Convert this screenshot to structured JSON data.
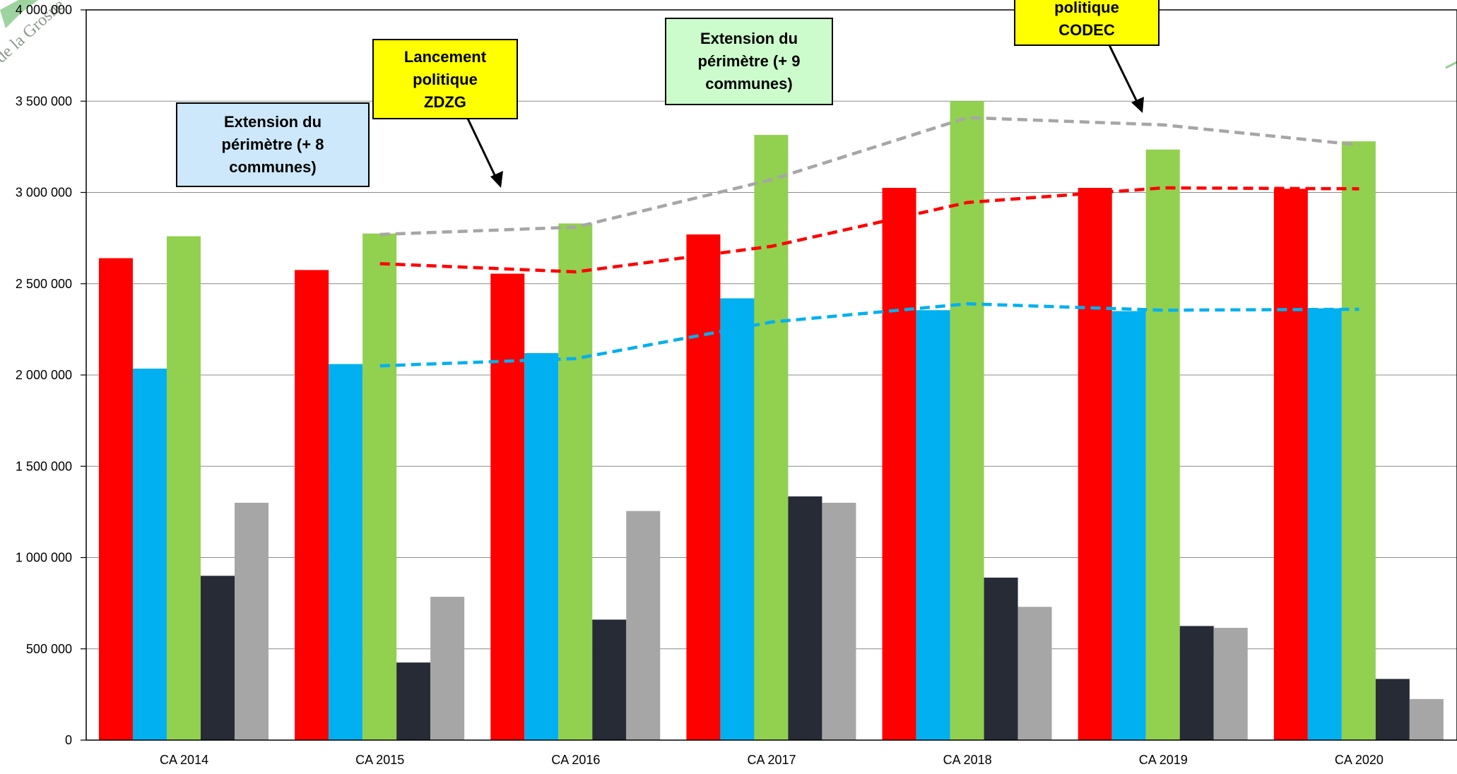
{
  "chart_data": {
    "type": "bar",
    "title": "",
    "xlabel": "",
    "ylabel": "",
    "ylim": [
      0,
      4000000
    ],
    "yticks": [
      0,
      500000,
      1000000,
      1500000,
      2000000,
      2500000,
      3000000,
      3500000,
      4000000
    ],
    "ytick_labels": [
      "0",
      "500 000",
      "1 000 000",
      "1 500 000",
      "2 000 000",
      "2 500 000",
      "3 000 000",
      "3 500 000",
      "4 000 000"
    ],
    "categories": [
      "CA 2014",
      "CA 2015",
      "CA 2016",
      "CA 2017",
      "CA 2018",
      "CA 2019",
      "CA 2020"
    ],
    "grid": true,
    "legend": "none",
    "series": [
      {
        "color": "#ff0000",
        "values": [
          2640000,
          2575000,
          2555000,
          2770000,
          3025000,
          3025000,
          3020000
        ]
      },
      {
        "color": "#00b0f0",
        "values": [
          2035000,
          2060000,
          2120000,
          2420000,
          2355000,
          2350000,
          2365000
        ]
      },
      {
        "color": "#92d050",
        "values": [
          2760000,
          2775000,
          2830000,
          3315000,
          3500000,
          3235000,
          3280000
        ]
      },
      {
        "color": "#262b36",
        "values": [
          900000,
          425000,
          660000,
          1335000,
          890000,
          625000,
          335000
        ]
      },
      {
        "color": "#a6a6a6",
        "values": [
          1300000,
          785000,
          1255000,
          1300000,
          730000,
          615000,
          225000
        ]
      }
    ],
    "trend_lines": [
      {
        "color": "#ff0000",
        "values": [
          null,
          2610000,
          2565000,
          2705000,
          2945000,
          3025000,
          3020000
        ]
      },
      {
        "color": "#00b0f0",
        "values": [
          null,
          2050000,
          2090000,
          2290000,
          2390000,
          2355000,
          2360000
        ]
      },
      {
        "color": "#a6a6a6",
        "values": [
          null,
          2770000,
          2810000,
          3070000,
          3410000,
          3370000,
          3260000
        ]
      }
    ],
    "annotations": [
      {
        "lines": [
          "Extension du",
          "périmètre (+ 8",
          "communes)"
        ],
        "fill": "#cce8fa"
      },
      {
        "lines": [
          "Lancement",
          "politique",
          "ZDZG"
        ],
        "fill": "#ffff00"
      },
      {
        "lines": [
          "Extension du",
          "périmètre (+ 9",
          "communes)"
        ],
        "fill": "#ccfccc"
      },
      {
        "lines": [
          "politique",
          "CODEC"
        ],
        "fill": "#ffff00"
      }
    ]
  }
}
